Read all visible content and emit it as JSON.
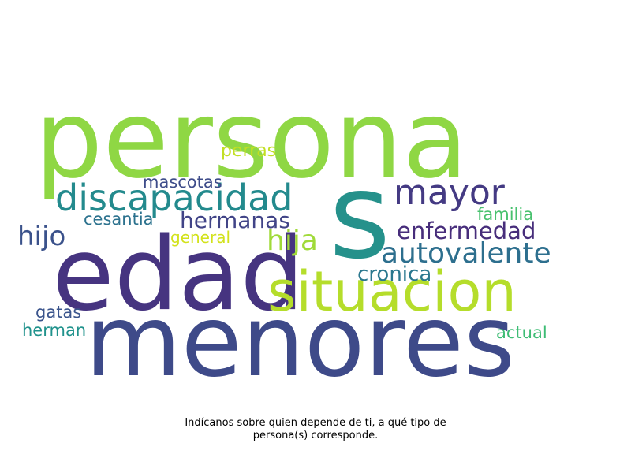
{
  "wordcloud": {
    "words": [
      {
        "text": "persona",
        "color": "#8fd744"
      },
      {
        "text": "s",
        "color": "#25918b"
      },
      {
        "text": "edad",
        "color": "#463480"
      },
      {
        "text": "menores",
        "color": "#3e4a89"
      },
      {
        "text": "situacion",
        "color": "#b5dd2b"
      },
      {
        "text": "discapacidad",
        "color": "#238a8d"
      },
      {
        "text": "mayor",
        "color": "#443a83"
      },
      {
        "text": "autovalente",
        "color": "#2d6f8e"
      },
      {
        "text": "enfermedad",
        "color": "#472d7b"
      },
      {
        "text": "hijo",
        "color": "#3b528b"
      },
      {
        "text": "hija",
        "color": "#a0da39"
      },
      {
        "text": "hermanas",
        "color": "#414487"
      },
      {
        "text": "cronica",
        "color": "#2b788e"
      },
      {
        "text": "perras",
        "color": "#c2df23"
      },
      {
        "text": "mascotas",
        "color": "#3e4c8a"
      },
      {
        "text": "cesantia",
        "color": "#2c728e"
      },
      {
        "text": "familia",
        "color": "#48c16e"
      },
      {
        "text": "general",
        "color": "#d2e21b"
      },
      {
        "text": "gatas",
        "color": "#3a548c"
      },
      {
        "text": "herman",
        "color": "#20928c"
      },
      {
        "text": "actual",
        "color": "#3dbc74"
      }
    ]
  },
  "caption": {
    "line1": "Indícanos sobre quien depende de ti, a qué tipo de",
    "line2": "persona(s) corresponde."
  }
}
